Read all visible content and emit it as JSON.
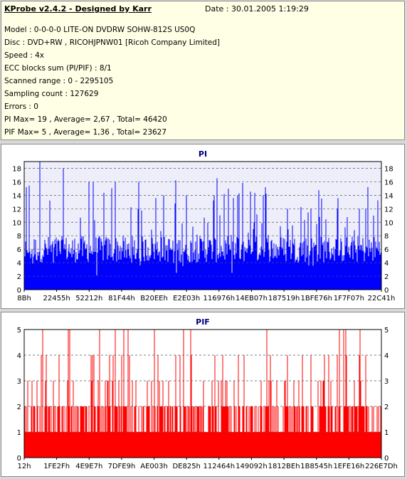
{
  "header": {
    "title": "KProbe v2.4.2 - Designed by Karr",
    "date": "Date : 30.01.2005 1:19:29"
  },
  "info_lines": [
    "Model : 0-0-0-0 LITE-ON DVDRW SOHW-812S  US0Q",
    "Disc : DVD+RW , RICOHJPNW01 [Ricoh Company Limited]",
    "Speed : 4x",
    "ECC blocks sum (PI/PIF) : 8/1",
    "Scanned range : 0 - 2295105",
    "Sampling count : 127629",
    "Errors : 0",
    "PI Max= 19 , Average= 2,67 , Total= 46420",
    "PIF Max= 5 , Average= 1,36 , Total= 23627"
  ],
  "colors": {
    "pi_bar": "#0000ff",
    "pif_bar": "#ff0000",
    "pi_bg": "#eeeefa",
    "pif_bg": "#ffffff",
    "chart_title": "#000080"
  },
  "chart_data": [
    {
      "type": "bar",
      "title": "PI",
      "ylim": [
        0,
        19
      ],
      "yticks": [
        "0",
        "2",
        "4",
        "6",
        "8",
        "10",
        "12",
        "14",
        "16",
        "18"
      ],
      "xticks": [
        "8Bh",
        "22455h",
        "52212h",
        "81F44h",
        "B20EEh",
        "E2E03h",
        "116976h",
        "14EB07h",
        "187519h",
        "1BFE76h",
        "1F7F07h",
        "22C41h"
      ],
      "max": 19,
      "average": 2.67,
      "peaks": [
        19,
        18,
        16,
        16,
        16,
        14,
        14,
        14,
        14,
        14,
        12,
        12,
        12,
        12
      ],
      "baseline": [
        4,
        8
      ],
      "grid": true
    },
    {
      "type": "bar",
      "title": "PIF",
      "ylim": [
        0,
        5
      ],
      "yticks": [
        "0",
        "1",
        "2",
        "3",
        "4",
        "5"
      ],
      "xticks": [
        "12h",
        "1FE2Fh",
        "4E9E7h",
        "7DFE9h",
        "AE003h",
        "DE825h",
        "112464h",
        "149092h",
        "1812BEh",
        "1B8545h",
        "1EFE16h",
        "226E7Dh"
      ],
      "max": 5,
      "average": 1.36,
      "peaks": [
        5,
        5,
        5,
        5,
        5,
        5,
        4,
        4,
        4,
        4,
        4,
        4
      ],
      "baseline": [
        1,
        2
      ],
      "grid": true
    }
  ]
}
